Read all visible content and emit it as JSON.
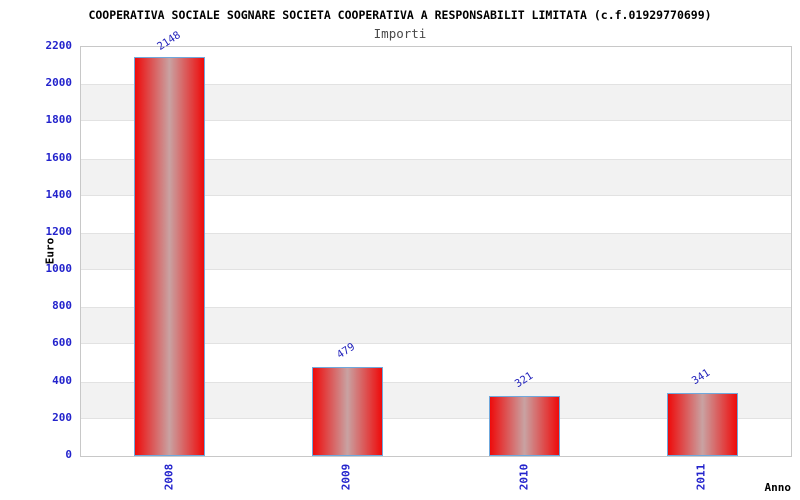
{
  "chart_data": {
    "type": "bar",
    "title": "COOPERATIVA SOCIALE SOGNARE SOCIETA COOPERATIVA A RESPONSABILIT LIMITATA (c.f.01929770699)",
    "subtitle": "Importi",
    "xlabel": "Anno",
    "ylabel": "Euro",
    "categories": [
      "2008",
      "2009",
      "2010",
      "2011"
    ],
    "values": [
      2148,
      479,
      321,
      341
    ],
    "bar_value_labels": [
      "2148",
      "479",
      "321",
      "341"
    ],
    "ylim": [
      0,
      2200
    ],
    "ytick_step": 200,
    "yticks": [
      0,
      200,
      400,
      600,
      800,
      1000,
      1200,
      1400,
      1600,
      1800,
      2000,
      2200
    ],
    "legend": null,
    "grid": "alternating-horizontal-bands",
    "colors": {
      "tick_label_blue": "#2323cc",
      "value_label_blue": "#2222bb",
      "bar_red": "#ee0b0b",
      "bar_center_sheen": "#c9a2a2",
      "bar_border_blue": "#6fa8dc",
      "band_gray": "#f2f2f2",
      "plot_border_gray": "#c8c8c8",
      "title_black": "#000000",
      "subtitle_gray": "#4a4a4a"
    }
  }
}
